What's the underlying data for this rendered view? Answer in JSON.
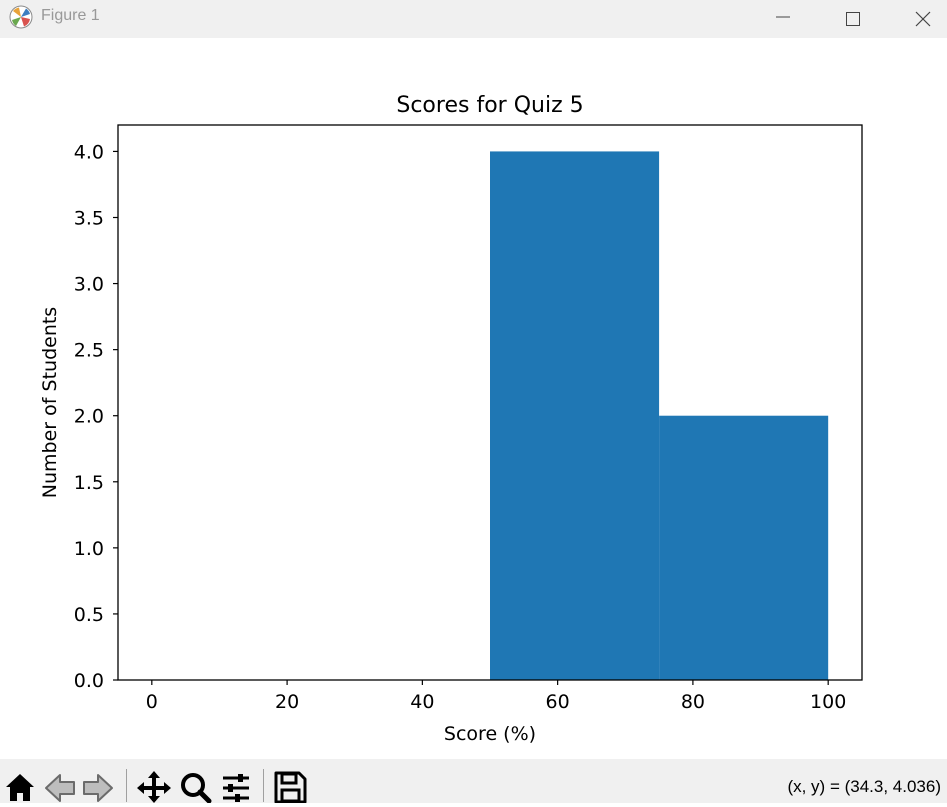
{
  "window": {
    "title": "Figure 1",
    "icon": "matplotlib-icon",
    "controls": [
      "minimize-icon",
      "maximize-icon",
      "close-icon"
    ]
  },
  "toolbar": {
    "tools": [
      "home-icon",
      "back-icon",
      "forward-icon",
      "pan-icon",
      "zoom-icon",
      "configure-subplots-icon",
      "save-icon"
    ],
    "coords": "(x, y) = (34.3, 4.036)"
  },
  "chart_data": {
    "type": "bar",
    "title": "Scores for Quiz 5",
    "xlabel": "Score (%)",
    "ylabel": "Number of Students",
    "bins": [
      [
        50,
        75
      ],
      [
        75,
        100
      ]
    ],
    "values": [
      4,
      2
    ],
    "xlim": [
      -5,
      105
    ],
    "ylim": [
      0,
      4.2
    ],
    "xticks": [
      0,
      20,
      40,
      60,
      80,
      100
    ],
    "xtick_labels": [
      "0",
      "20",
      "40",
      "60",
      "80",
      "100"
    ],
    "yticks": [
      0,
      0.5,
      1,
      1.5,
      2,
      2.5,
      3,
      3.5,
      4
    ],
    "ytick_labels": [
      "0.0",
      "0.5",
      "1.0",
      "1.5",
      "2.0",
      "2.5",
      "3.0",
      "3.5",
      "4.0"
    ],
    "bar_color": "#1f77b4",
    "grid": false,
    "legend": false
  }
}
